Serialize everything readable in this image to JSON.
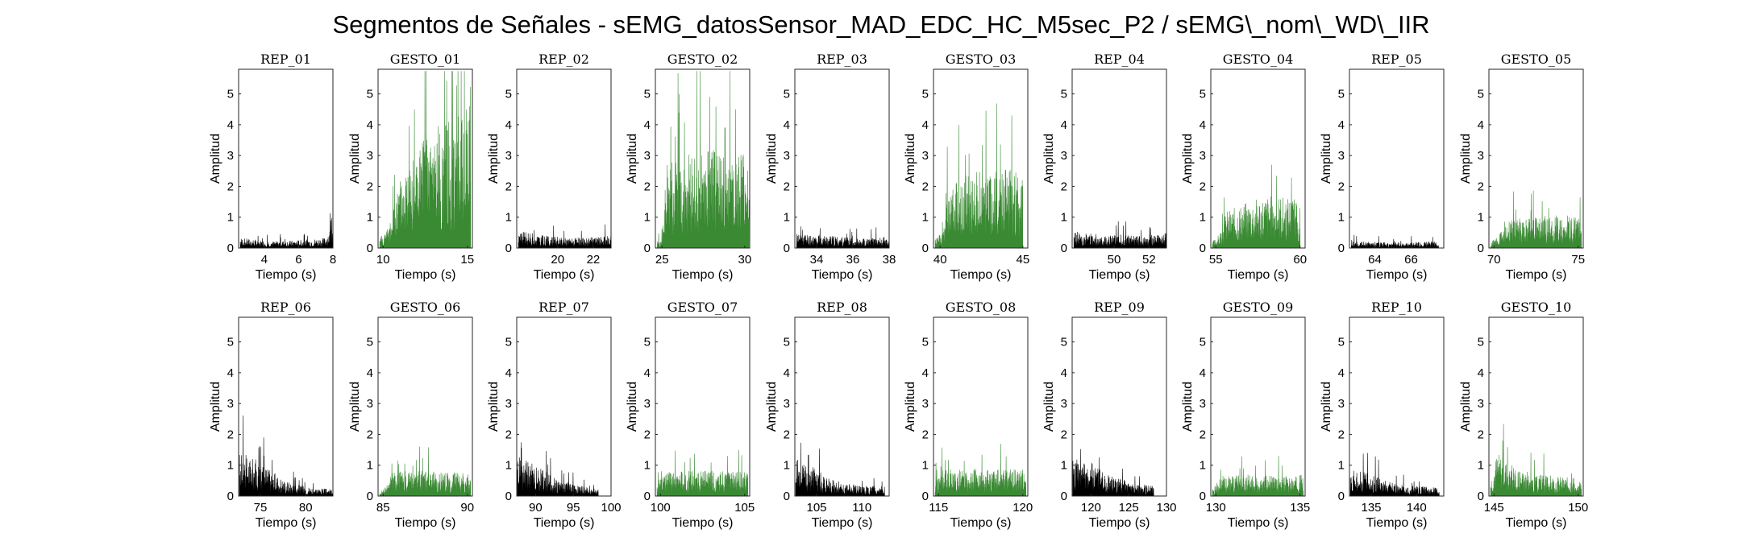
{
  "figure": {
    "title": "Segmentos de Señales - sEMG_datosSensor_MAD_EDC_HC_M5sec_P2 / sEMG\\_nom\\_WD\\_IIR"
  },
  "colors": {
    "rep": "#000000",
    "gesto": "#3a8a33",
    "axis": "#262626"
  },
  "chart_data": [
    {
      "type": "area",
      "title": "REP_01",
      "xlabel": "Tiempo (s)",
      "ylabel": "Amplitud",
      "xlim": [
        2.5,
        8
      ],
      "ylim": [
        0,
        5.8
      ],
      "x_ticks": [
        4,
        6,
        8
      ],
      "y_ticks": [
        0,
        1,
        2,
        3,
        4,
        5
      ],
      "series": [
        {
          "color": "#000000",
          "x": [
            2.6,
            3.5,
            4.5,
            5.5,
            6.5,
            7.5,
            8.0
          ],
          "values": [
            0.3,
            0.25,
            0.2,
            0.22,
            0.25,
            0.3,
            0.7
          ]
        }
      ]
    },
    {
      "type": "area",
      "title": "GESTO_01",
      "xlabel": "Tiempo (s)",
      "ylabel": "Amplitud",
      "xlim": [
        9.7,
        15.3
      ],
      "ylim": [
        0,
        5.8
      ],
      "x_ticks": [
        10,
        15
      ],
      "y_ticks": [
        0,
        1,
        2,
        3,
        4,
        5
      ],
      "series": [
        {
          "color": "#3a8a33",
          "x": [
            9.8,
            10.2,
            10.6,
            11.0,
            11.5,
            12.0,
            12.5,
            13.0,
            13.5,
            14.0,
            14.5,
            15.0,
            15.2
          ],
          "values": [
            0.4,
            0.5,
            1.2,
            2.0,
            2.6,
            3.0,
            3.3,
            3.5,
            3.7,
            3.8,
            3.9,
            4.2,
            5.7
          ]
        }
      ]
    },
    {
      "type": "area",
      "title": "REP_02",
      "xlabel": "Tiempo (s)",
      "ylabel": "Amplitud",
      "xlim": [
        17.7,
        23
      ],
      "ylim": [
        0,
        5.8
      ],
      "x_ticks": [
        20,
        22
      ],
      "y_ticks": [
        0,
        1,
        2,
        3,
        4,
        5
      ],
      "series": [
        {
          "color": "#000000",
          "x": [
            17.8,
            18.5,
            19.5,
            20.5,
            21.5,
            22.5,
            23.0
          ],
          "values": [
            0.5,
            0.45,
            0.35,
            0.3,
            0.3,
            0.35,
            0.4
          ]
        }
      ]
    },
    {
      "type": "area",
      "title": "GESTO_02",
      "xlabel": "Tiempo (s)",
      "ylabel": "Amplitud",
      "xlim": [
        24.6,
        30.3
      ],
      "ylim": [
        0,
        5.8
      ],
      "x_ticks": [
        25,
        30
      ],
      "y_ticks": [
        0,
        1,
        2,
        3,
        4,
        5
      ],
      "series": [
        {
          "color": "#3a8a33",
          "x": [
            24.7,
            25.0,
            25.3,
            26.0,
            27.0,
            28.0,
            29.0,
            30.0,
            30.3
          ],
          "values": [
            0.2,
            0.3,
            2.6,
            2.7,
            2.8,
            2.9,
            2.9,
            2.8,
            2.6
          ]
        }
      ]
    },
    {
      "type": "area",
      "title": "REP_03",
      "xlabel": "Tiempo (s)",
      "ylabel": "Amplitud",
      "xlim": [
        32.8,
        38
      ],
      "ylim": [
        0,
        5.8
      ],
      "x_ticks": [
        34,
        36,
        38
      ],
      "y_ticks": [
        0,
        1,
        2,
        3,
        4,
        5
      ],
      "series": [
        {
          "color": "#000000",
          "x": [
            32.9,
            34.0,
            35.0,
            36.0,
            37.0,
            38.0
          ],
          "values": [
            0.45,
            0.4,
            0.35,
            0.3,
            0.3,
            0.35
          ]
        }
      ]
    },
    {
      "type": "area",
      "title": "GESTO_03",
      "xlabel": "Tiempo (s)",
      "ylabel": "Amplitud",
      "xlim": [
        39.6,
        45.3
      ],
      "ylim": [
        0,
        5.8
      ],
      "x_ticks": [
        40,
        45
      ],
      "y_ticks": [
        0,
        1,
        2,
        3,
        4,
        5
      ],
      "series": [
        {
          "color": "#3a8a33",
          "x": [
            39.7,
            40.2,
            40.5,
            41.5,
            42.5,
            43.5,
            44.5,
            45.0
          ],
          "values": [
            0.3,
            0.5,
            2.0,
            2.2,
            2.3,
            2.4,
            2.3,
            2.0
          ]
        }
      ]
    },
    {
      "type": "area",
      "title": "REP_04",
      "xlabel": "Tiempo (s)",
      "ylabel": "Amplitud",
      "xlim": [
        47.6,
        53
      ],
      "ylim": [
        0,
        5.8
      ],
      "x_ticks": [
        50,
        52
      ],
      "y_ticks": [
        0,
        1,
        2,
        3,
        4,
        5
      ],
      "series": [
        {
          "color": "#000000",
          "x": [
            47.7,
            48.5,
            49.5,
            50.5,
            51.5,
            52.5,
            53.0
          ],
          "values": [
            0.5,
            0.45,
            0.4,
            0.4,
            0.35,
            0.4,
            0.45
          ]
        }
      ]
    },
    {
      "type": "area",
      "title": "GESTO_04",
      "xlabel": "Tiempo (s)",
      "ylabel": "Amplitud",
      "xlim": [
        54.7,
        60.3
      ],
      "ylim": [
        0,
        5.8
      ],
      "x_ticks": [
        55,
        60
      ],
      "y_ticks": [
        0,
        1,
        2,
        3,
        4,
        5
      ],
      "series": [
        {
          "color": "#3a8a33",
          "x": [
            54.8,
            55.2,
            55.6,
            56.5,
            57.5,
            58.5,
            59.5,
            60.0
          ],
          "values": [
            0.2,
            0.4,
            1.1,
            1.3,
            1.5,
            1.6,
            1.5,
            1.3
          ]
        }
      ]
    },
    {
      "type": "area",
      "title": "REP_05",
      "xlabel": "Tiempo (s)",
      "ylabel": "Amplitud",
      "xlim": [
        62.6,
        67.8
      ],
      "ylim": [
        0,
        5.8
      ],
      "x_ticks": [
        64,
        66
      ],
      "y_ticks": [
        0,
        1,
        2,
        3,
        4,
        5
      ],
      "series": [
        {
          "color": "#000000",
          "x": [
            62.7,
            63.5,
            64.5,
            65.5,
            66.5,
            67.5
          ],
          "values": [
            0.2,
            0.18,
            0.18,
            0.17,
            0.18,
            0.2
          ]
        }
      ]
    },
    {
      "type": "area",
      "title": "GESTO_05",
      "xlabel": "Tiempo (s)",
      "ylabel": "Amplitud",
      "xlim": [
        69.7,
        75.3
      ],
      "ylim": [
        0,
        5.8
      ],
      "x_ticks": [
        70,
        75
      ],
      "y_ticks": [
        0,
        1,
        2,
        3,
        4,
        5
      ],
      "series": [
        {
          "color": "#3a8a33",
          "x": [
            69.8,
            70.2,
            70.6,
            71.5,
            72.5,
            73.5,
            74.5,
            75.2
          ],
          "values": [
            0.2,
            0.3,
            0.8,
            0.9,
            0.9,
            1.0,
            0.95,
            0.9
          ]
        }
      ]
    },
    {
      "type": "area",
      "title": "REP_06",
      "xlabel": "Tiempo (s)",
      "ylabel": "Amplitud",
      "xlim": [
        72.6,
        83
      ],
      "ylim": [
        0,
        5.8
      ],
      "x_ticks": [
        75,
        80
      ],
      "y_ticks": [
        0,
        1,
        2,
        3,
        4,
        5
      ],
      "series": [
        {
          "color": "#000000",
          "x": [
            72.7,
            73.5,
            74.5,
            75.5,
            76.5,
            77.5,
            79,
            81,
            83
          ],
          "values": [
            1.3,
            1.2,
            1.1,
            0.9,
            0.7,
            0.5,
            0.35,
            0.25,
            0.2
          ]
        }
      ]
    },
    {
      "type": "area",
      "title": "GESTO_06",
      "xlabel": "Tiempo (s)",
      "ylabel": "Amplitud",
      "xlim": [
        84.7,
        90.3
      ],
      "ylim": [
        0,
        5.8
      ],
      "x_ticks": [
        85,
        90
      ],
      "y_ticks": [
        0,
        1,
        2,
        3,
        4,
        5
      ],
      "series": [
        {
          "color": "#3a8a33",
          "x": [
            84.8,
            85.2,
            85.5,
            86.5,
            87.5,
            88.5,
            89.5,
            90.2
          ],
          "values": [
            0.1,
            0.3,
            0.7,
            0.75,
            0.75,
            0.7,
            0.7,
            0.7
          ]
        }
      ]
    },
    {
      "type": "area",
      "title": "REP_07",
      "xlabel": "Tiempo (s)",
      "ylabel": "Amplitud",
      "xlim": [
        87.5,
        100
      ],
      "ylim": [
        0,
        5.8
      ],
      "x_ticks": [
        90,
        95,
        100
      ],
      "y_ticks": [
        0,
        1,
        2,
        3,
        4,
        5
      ],
      "series": [
        {
          "color": "#000000",
          "x": [
            87.6,
            88.5,
            90,
            91.5,
            93,
            95,
            97,
            98.3
          ],
          "values": [
            1.2,
            1.1,
            0.9,
            0.7,
            0.5,
            0.35,
            0.25,
            0.2
          ]
        }
      ]
    },
    {
      "type": "area",
      "title": "GESTO_07",
      "xlabel": "Tiempo (s)",
      "ylabel": "Amplitud",
      "xlim": [
        99.7,
        105.3
      ],
      "ylim": [
        0,
        5.8
      ],
      "x_ticks": [
        100,
        105
      ],
      "y_ticks": [
        0,
        1,
        2,
        3,
        4,
        5
      ],
      "series": [
        {
          "color": "#3a8a33",
          "x": [
            99.8,
            100.3,
            101.5,
            102.5,
            103.5,
            104.5,
            105.2
          ],
          "values": [
            0.5,
            0.7,
            0.75,
            0.75,
            0.75,
            0.75,
            0.7
          ]
        }
      ]
    },
    {
      "type": "area",
      "title": "REP_08",
      "xlabel": "Tiempo (s)",
      "ylabel": "Amplitud",
      "xlim": [
        102.6,
        113
      ],
      "ylim": [
        0,
        5.8
      ],
      "x_ticks": [
        105,
        110
      ],
      "y_ticks": [
        0,
        1,
        2,
        3,
        4,
        5
      ],
      "series": [
        {
          "color": "#000000",
          "x": [
            102.7,
            103.5,
            104.5,
            105.5,
            106.5,
            108,
            110,
            112.5
          ],
          "values": [
            1.1,
            1.0,
            0.9,
            0.7,
            0.5,
            0.4,
            0.3,
            0.3
          ]
        }
      ]
    },
    {
      "type": "area",
      "title": "GESTO_08",
      "xlabel": "Tiempo (s)",
      "ylabel": "Amplitud",
      "xlim": [
        114.7,
        120.3
      ],
      "ylim": [
        0,
        5.8
      ],
      "x_ticks": [
        115,
        120
      ],
      "y_ticks": [
        0,
        1,
        2,
        3,
        4,
        5
      ],
      "series": [
        {
          "color": "#3a8a33",
          "x": [
            114.8,
            115.3,
            116.5,
            117.5,
            118.5,
            119.5,
            120.2
          ],
          "values": [
            0.5,
            0.8,
            0.8,
            0.8,
            0.8,
            0.8,
            0.8
          ]
        }
      ]
    },
    {
      "type": "area",
      "title": "REP_09",
      "xlabel": "Tiempo (s)",
      "ylabel": "Amplitud",
      "xlim": [
        117.5,
        130
      ],
      "ylim": [
        0,
        5.8
      ],
      "x_ticks": [
        120,
        125,
        130
      ],
      "y_ticks": [
        0,
        1,
        2,
        3,
        4,
        5
      ],
      "series": [
        {
          "color": "#000000",
          "x": [
            117.6,
            118.5,
            120,
            121.5,
            123,
            125,
            127,
            128.3
          ],
          "values": [
            1.1,
            1.1,
            1.0,
            0.8,
            0.6,
            0.45,
            0.35,
            0.3
          ]
        }
      ]
    },
    {
      "type": "area",
      "title": "GESTO_09",
      "xlabel": "Tiempo (s)",
      "ylabel": "Amplitud",
      "xlim": [
        129.7,
        135.3
      ],
      "ylim": [
        0,
        5.8
      ],
      "x_ticks": [
        130,
        135
      ],
      "y_ticks": [
        0,
        1,
        2,
        3,
        4,
        5
      ],
      "series": [
        {
          "color": "#3a8a33",
          "x": [
            129.8,
            130.3,
            131.5,
            132.5,
            133.5,
            134.5,
            135.2
          ],
          "values": [
            0.2,
            0.6,
            0.65,
            0.6,
            0.6,
            0.6,
            0.65
          ]
        }
      ]
    },
    {
      "type": "area",
      "title": "REP_10",
      "xlabel": "Tiempo (s)",
      "ylabel": "Amplitud",
      "xlim": [
        132.6,
        143
      ],
      "ylim": [
        0,
        5.8
      ],
      "x_ticks": [
        135,
        140
      ],
      "y_ticks": [
        0,
        1,
        2,
        3,
        4,
        5
      ],
      "series": [
        {
          "color": "#000000",
          "x": [
            132.7,
            133.5,
            134.5,
            135.5,
            136.5,
            138,
            140,
            142.5
          ],
          "values": [
            0.8,
            0.75,
            0.7,
            0.6,
            0.45,
            0.35,
            0.3,
            0.25
          ]
        }
      ]
    },
    {
      "type": "area",
      "title": "GESTO_10",
      "xlabel": "Tiempo (s)",
      "ylabel": "Amplitud",
      "xlim": [
        144.7,
        150.3
      ],
      "ylim": [
        0,
        5.8
      ],
      "x_ticks": [
        145,
        150
      ],
      "y_ticks": [
        0,
        1,
        2,
        3,
        4,
        5
      ],
      "series": [
        {
          "color": "#3a8a33",
          "x": [
            144.8,
            145.2,
            145.8,
            146.5,
            147.5,
            148.5,
            149.5,
            150.2
          ],
          "values": [
            0.5,
            1.3,
            1.0,
            0.8,
            0.65,
            0.6,
            0.55,
            0.5
          ]
        }
      ]
    }
  ]
}
